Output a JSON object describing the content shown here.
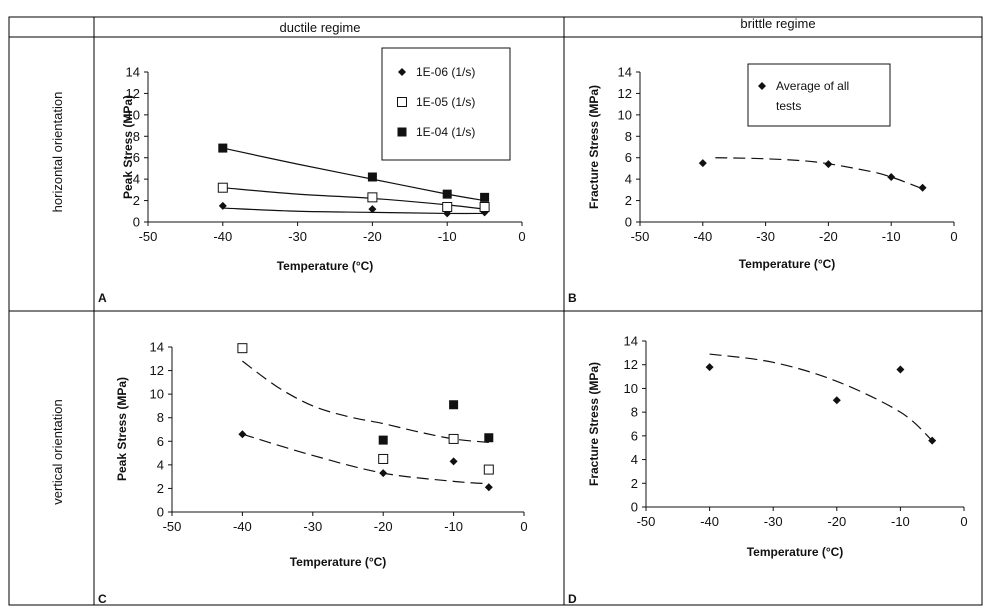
{
  "headers": {
    "ductile": "ductile regime",
    "brittle": "brittle regime",
    "horizontal": "horizontal orientation",
    "vertical": "vertical orientation"
  },
  "colors": {
    "line": "#111111",
    "grid": "#000000"
  },
  "chart_data": [
    {
      "id": "A",
      "panel_label": "A",
      "type": "scatter",
      "xlabel": "Temperature (°C)",
      "ylabel": "Peak Stress (MPa)",
      "xlim": [
        -50,
        0
      ],
      "ylim": [
        0,
        14
      ],
      "xticks": [
        -50,
        -40,
        -30,
        -20,
        -10,
        0
      ],
      "yticks": [
        0,
        2,
        4,
        6,
        8,
        10,
        12,
        14
      ],
      "legend": "inside-top-right",
      "series": [
        {
          "name": "1E-06 (1/s)",
          "marker": "diamond",
          "trend": "solid",
          "x": [
            -40,
            -20,
            -10,
            -5
          ],
          "y": [
            1.5,
            1.2,
            0.8,
            0.9
          ]
        },
        {
          "name": "1E-05 (1/s)",
          "marker": "open-square",
          "trend": "solid",
          "x": [
            -40,
            -20,
            -10,
            -5
          ],
          "y": [
            3.2,
            2.3,
            1.4,
            1.4
          ]
        },
        {
          "name": "1E-04 (1/s)",
          "marker": "filled-square",
          "trend": "solid",
          "x": [
            -40,
            -20,
            -10,
            -5
          ],
          "y": [
            6.9,
            4.2,
            2.6,
            2.3
          ]
        }
      ]
    },
    {
      "id": "B",
      "panel_label": "B",
      "type": "scatter",
      "xlabel": "Temperature (°C)",
      "ylabel": "Fracture Stress (MPa)",
      "xlim": [
        -50,
        0
      ],
      "ylim": [
        0,
        14
      ],
      "xticks": [
        -50,
        -40,
        -30,
        -20,
        -10,
        0
      ],
      "yticks": [
        0,
        2,
        4,
        6,
        8,
        10,
        12,
        14
      ],
      "legend": "inside-top",
      "series": [
        {
          "name": "Average of all tests",
          "marker": "diamond",
          "trend": "dashed",
          "x": [
            -40,
            -20,
            -10,
            -5
          ],
          "y": [
            5.5,
            5.4,
            4.2,
            3.2
          ]
        }
      ]
    },
    {
      "id": "C",
      "panel_label": "C",
      "type": "scatter",
      "xlabel": "Temperature (°C)",
      "ylabel": "Peak Stress (MPa)",
      "xlim": [
        -50,
        0
      ],
      "ylim": [
        0,
        14
      ],
      "xticks": [
        -50,
        -40,
        -30,
        -20,
        -10,
        0
      ],
      "yticks": [
        0,
        2,
        4,
        6,
        8,
        10,
        12,
        14
      ],
      "series": [
        {
          "marker": "diamond",
          "trend": "dashed",
          "x": [
            -40,
            -20,
            -10,
            -5
          ],
          "y": [
            6.6,
            3.3,
            4.3,
            2.1
          ]
        },
        {
          "marker": "open-square",
          "trend": "dashed",
          "x": [
            -40,
            -20,
            -10,
            -5
          ],
          "y": [
            13.9,
            4.5,
            6.2,
            3.6
          ]
        },
        {
          "marker": "filled-square",
          "trend": "none",
          "x": [
            -20,
            -10,
            -5
          ],
          "y": [
            6.1,
            9.1,
            6.3
          ]
        }
      ]
    },
    {
      "id": "D",
      "panel_label": "D",
      "type": "scatter",
      "xlabel": "Temperature (°C)",
      "ylabel": "Fracture Stress (MPa)",
      "xlim": [
        -50,
        0
      ],
      "ylim": [
        0,
        14
      ],
      "xticks": [
        -50,
        -40,
        -30,
        -20,
        -10,
        0
      ],
      "yticks": [
        0,
        2,
        4,
        6,
        8,
        10,
        12,
        14
      ],
      "series": [
        {
          "marker": "diamond",
          "trend": "dashed",
          "x": [
            -40,
            -20,
            -10,
            -5
          ],
          "y": [
            11.8,
            9.0,
            11.6,
            5.6
          ]
        }
      ]
    }
  ]
}
